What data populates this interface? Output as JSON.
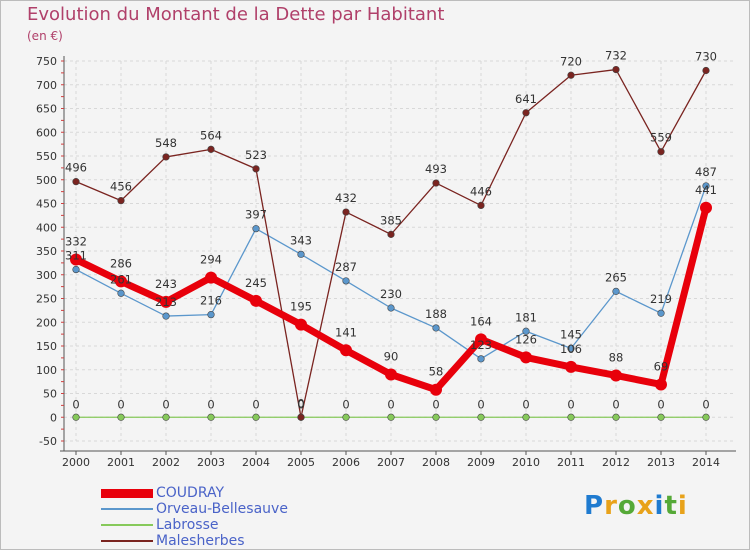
{
  "title": "Evolution du Montant de la Dette par Habitant",
  "unit_label": "(en €)",
  "logo": {
    "text": "Proxiti",
    "letter_colors": [
      "#1f7bd0",
      "#e8a21a",
      "#55a937",
      "#e8a21a",
      "#1f7bd0",
      "#55a937",
      "#e8a21a"
    ]
  },
  "chart_data": {
    "type": "line",
    "title": "Evolution du Montant de la Dette par Habitant",
    "ylabel": "(en €)",
    "xlabel": "",
    "ylim": [
      -50,
      750
    ],
    "y_ticks": [
      -50,
      0,
      50,
      100,
      150,
      200,
      250,
      300,
      350,
      400,
      450,
      500,
      550,
      600,
      650,
      700,
      750
    ],
    "grid": true,
    "legend_position": "bottom-left",
    "categories": [
      "2000",
      "2001",
      "2002",
      "2003",
      "2004",
      "2005",
      "2006",
      "2007",
      "2008",
      "2009",
      "2010",
      "2011",
      "2012",
      "2013",
      "2014"
    ],
    "series": [
      {
        "name": "COUDRAY",
        "color": "#e8000b",
        "values": [
          332,
          286,
          243,
          294,
          245,
          195,
          141,
          90,
          58,
          164,
          126,
          106,
          88,
          69,
          441
        ]
      },
      {
        "name": "Orveau-Bellesauve",
        "color": "#5b97cc",
        "values": [
          311,
          261,
          213,
          216,
          397,
          343,
          287,
          230,
          188,
          123,
          181,
          145,
          265,
          219,
          487
        ]
      },
      {
        "name": "Labrosse",
        "color": "#86c95a",
        "values": [
          0,
          0,
          0,
          0,
          0,
          0,
          0,
          0,
          0,
          0,
          0,
          0,
          0,
          0,
          0
        ]
      },
      {
        "name": "Malesherbes",
        "color": "#7a2420",
        "values": [
          496,
          456,
          548,
          564,
          523,
          0,
          432,
          385,
          493,
          446,
          641,
          720,
          732,
          559,
          730
        ]
      }
    ]
  }
}
